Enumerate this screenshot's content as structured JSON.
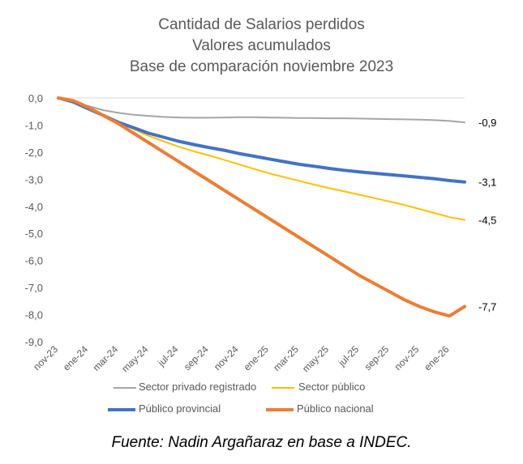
{
  "title": {
    "line1": "Cantidad de Salarios perdidos",
    "line2": "Valores acumulados",
    "line3": "Base de comparación noviembre 2023"
  },
  "source": "Fuente: Nadin Argañaraz en base a INDEC.",
  "chart_data": {
    "type": "line",
    "title": "Cantidad de Salarios perdidos Valores acumulados Base de comparación noviembre 2023",
    "ylim": [
      -9,
      0
    ],
    "ytick_labels": [
      "0,0",
      "-1,0",
      "-2,0",
      "-3,0",
      "-4,0",
      "-5,0",
      "-6,0",
      "-7,0",
      "-8,0",
      "-9,0"
    ],
    "ytick_values": [
      0,
      -1,
      -2,
      -3,
      -4,
      -5,
      -6,
      -7,
      -8,
      -9
    ],
    "x_tick_labels": [
      "nov-23",
      "ene-24",
      "mar-24",
      "may-24",
      "jul-24",
      "sep-24",
      "nov-24",
      "ene-25",
      "mar-25",
      "may-25",
      "jul-25",
      "sep-25",
      "nov-25",
      "ene-26"
    ],
    "x": [
      "nov-23",
      "dic-23",
      "ene-24",
      "feb-24",
      "mar-24",
      "abr-24",
      "may-24",
      "jun-24",
      "jul-24",
      "ago-24",
      "sep-24",
      "oct-24",
      "nov-24",
      "dic-24",
      "ene-25",
      "feb-25",
      "mar-25",
      "abr-25",
      "may-25",
      "jun-25",
      "jul-25",
      "ago-25",
      "sep-25",
      "oct-25",
      "nov-25",
      "dic-25",
      "ene-26",
      "feb-26"
    ],
    "series": [
      {
        "name": "Sector privado registrado",
        "color": "#a5a5a5",
        "values": [
          0,
          -0.15,
          -0.3,
          -0.45,
          -0.55,
          -0.62,
          -0.66,
          -0.7,
          -0.72,
          -0.73,
          -0.73,
          -0.72,
          -0.71,
          -0.71,
          -0.72,
          -0.73,
          -0.74,
          -0.74,
          -0.75,
          -0.75,
          -0.76,
          -0.77,
          -0.78,
          -0.79,
          -0.8,
          -0.82,
          -0.85,
          -0.9
        ],
        "end_label": "-0,9"
      },
      {
        "name": "Sector público",
        "color": "#ffc000",
        "values": [
          0,
          -0.15,
          -0.4,
          -0.65,
          -0.9,
          -1.15,
          -1.4,
          -1.6,
          -1.8,
          -1.97,
          -2.12,
          -2.28,
          -2.45,
          -2.62,
          -2.78,
          -2.92,
          -3.06,
          -3.2,
          -3.33,
          -3.45,
          -3.57,
          -3.7,
          -3.82,
          -3.95,
          -4.1,
          -4.25,
          -4.4,
          -4.5
        ],
        "end_label": "-4,5"
      },
      {
        "name": "Público provincial",
        "color": "#4472c4",
        "values": [
          0,
          -0.15,
          -0.4,
          -0.65,
          -0.9,
          -1.1,
          -1.3,
          -1.45,
          -1.6,
          -1.72,
          -1.83,
          -1.93,
          -2.05,
          -2.15,
          -2.25,
          -2.35,
          -2.45,
          -2.52,
          -2.6,
          -2.67,
          -2.73,
          -2.78,
          -2.83,
          -2.88,
          -2.93,
          -2.98,
          -3.05,
          -3.1
        ],
        "end_label": "-3,1"
      },
      {
        "name": "Público nacional",
        "color": "#ed7d31",
        "values": [
          0,
          -0.1,
          -0.35,
          -0.65,
          -0.95,
          -1.3,
          -1.65,
          -2.0,
          -2.35,
          -2.7,
          -3.05,
          -3.4,
          -3.75,
          -4.1,
          -4.45,
          -4.8,
          -5.15,
          -5.5,
          -5.85,
          -6.2,
          -6.55,
          -6.85,
          -7.15,
          -7.45,
          -7.7,
          -7.9,
          -8.05,
          -7.7
        ],
        "end_label": "-7,7"
      }
    ],
    "legend_position": "bottom",
    "grid": false
  }
}
